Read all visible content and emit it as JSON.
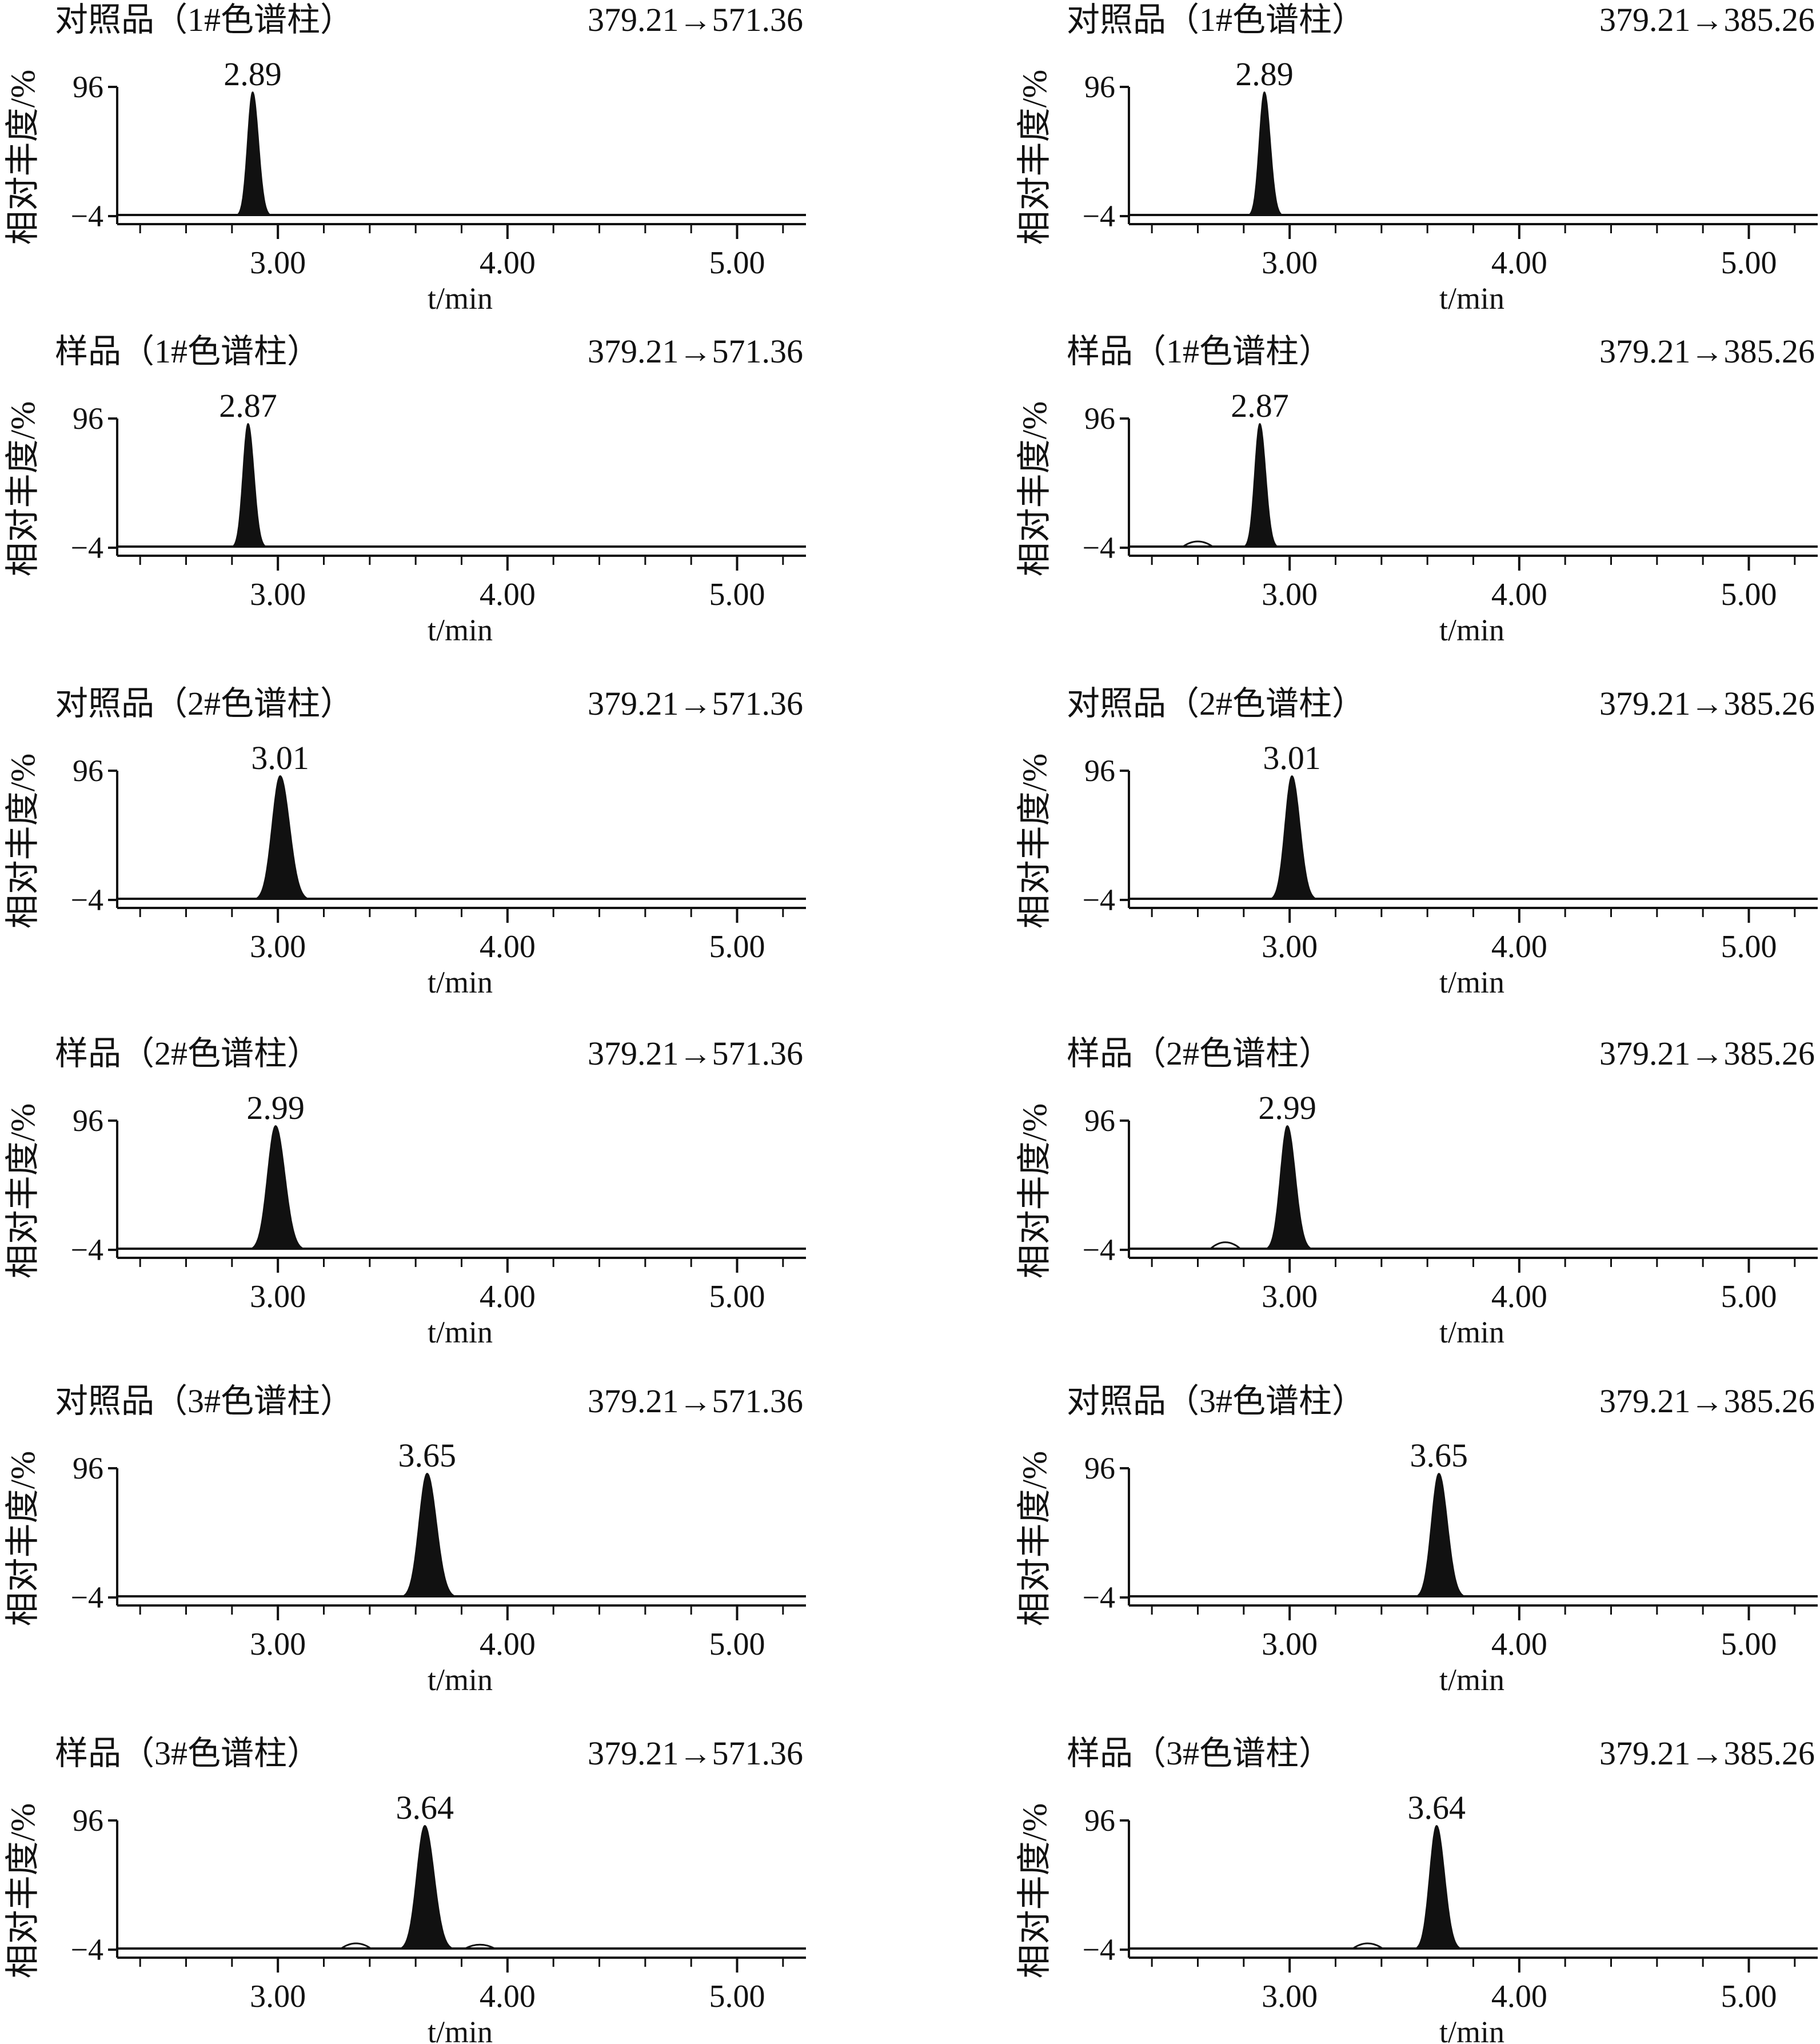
{
  "chart_data": [
    {
      "type": "line",
      "title": "对照品（1#色谱柱）",
      "transition": "379.21→571.36",
      "ylabel": "相对丰度/%",
      "xlabel": "t/min",
      "ylim": [
        -4,
        96
      ],
      "yticks": [
        "96",
        "−4"
      ],
      "xlim": [
        2.3,
        5.3
      ],
      "xticks": [
        {
          "value": 3.0,
          "label": "3.00"
        },
        {
          "value": 4.0,
          "label": "4.00"
        },
        {
          "value": 5.0,
          "label": "5.00"
        }
      ],
      "series": [
        {
          "peaks": [
            {
              "rt": 2.89,
              "label": "2.89",
              "height": 96,
              "sigma": 0.022,
              "tail": 0.06
            }
          ],
          "minor_peaks": []
        }
      ]
    },
    {
      "type": "line",
      "title": "对照品（1#色谱柱）",
      "transition": "379.21→385.26",
      "ylabel": "相对丰度/%",
      "xlabel": "t/min",
      "ylim": [
        -4,
        96
      ],
      "yticks": [
        "96",
        "−4"
      ],
      "xlim": [
        2.3,
        5.3
      ],
      "xticks": [
        {
          "value": 3.0,
          "label": "3.00"
        },
        {
          "value": 4.0,
          "label": "4.00"
        },
        {
          "value": 5.0,
          "label": "5.00"
        }
      ],
      "series": [
        {
          "peaks": [
            {
              "rt": 2.89,
              "label": "2.89",
              "height": 96,
              "sigma": 0.022,
              "tail": 0.06
            }
          ],
          "minor_peaks": []
        }
      ]
    },
    {
      "type": "line",
      "title": "样品（1#色谱柱）",
      "transition": "379.21→571.36",
      "ylabel": "相对丰度/%",
      "xlabel": "t/min",
      "ylim": [
        -4,
        96
      ],
      "yticks": [
        "96",
        "−4"
      ],
      "xlim": [
        2.3,
        5.3
      ],
      "xticks": [
        {
          "value": 3.0,
          "label": "3.00"
        },
        {
          "value": 4.0,
          "label": "4.00"
        },
        {
          "value": 5.0,
          "label": "5.00"
        }
      ],
      "series": [
        {
          "peaks": [
            {
              "rt": 2.87,
              "label": "2.87",
              "height": 96,
              "sigma": 0.022,
              "tail": 0.06
            }
          ],
          "minor_peaks": []
        }
      ]
    },
    {
      "type": "line",
      "title": "样品（1#色谱柱）",
      "transition": "379.21→385.26",
      "ylabel": "相对丰度/%",
      "xlabel": "t/min",
      "ylim": [
        -4,
        96
      ],
      "yticks": [
        "96",
        "−4"
      ],
      "xlim": [
        2.3,
        5.3
      ],
      "xticks": [
        {
          "value": 3.0,
          "label": "3.00"
        },
        {
          "value": 4.0,
          "label": "4.00"
        },
        {
          "value": 5.0,
          "label": "5.00"
        }
      ],
      "series": [
        {
          "peaks": [
            {
              "rt": 2.87,
              "label": "2.87",
              "height": 96,
              "sigma": 0.022,
              "tail": 0.06
            }
          ],
          "minor_peaks": [
            {
              "rt": 2.6,
              "height": 4
            }
          ]
        }
      ]
    },
    {
      "type": "line",
      "title": "对照品（2#色谱柱）",
      "transition": "379.21→571.36",
      "ylabel": "相对丰度/%",
      "xlabel": "t/min",
      "ylim": [
        -4,
        96
      ],
      "yticks": [
        "96",
        "−4"
      ],
      "xlim": [
        2.3,
        5.3
      ],
      "xticks": [
        {
          "value": 3.0,
          "label": "3.00"
        },
        {
          "value": 4.0,
          "label": "4.00"
        },
        {
          "value": 5.0,
          "label": "5.00"
        }
      ],
      "series": [
        {
          "peaks": [
            {
              "rt": 3.01,
              "label": "3.01",
              "height": 96,
              "sigma": 0.035,
              "tail": 0.08
            }
          ],
          "minor_peaks": []
        }
      ]
    },
    {
      "type": "line",
      "title": "对照品（2#色谱柱）",
      "transition": "379.21→385.26",
      "ylabel": "相对丰度/%",
      "xlabel": "t/min",
      "ylim": [
        -4,
        96
      ],
      "yticks": [
        "96",
        "−4"
      ],
      "xlim": [
        2.3,
        5.3
      ],
      "xticks": [
        {
          "value": 3.0,
          "label": "3.00"
        },
        {
          "value": 4.0,
          "label": "4.00"
        },
        {
          "value": 5.0,
          "label": "5.00"
        }
      ],
      "series": [
        {
          "peaks": [
            {
              "rt": 3.01,
              "label": "3.01",
              "height": 96,
              "sigma": 0.03,
              "tail": 0.07
            }
          ],
          "minor_peaks": []
        }
      ]
    },
    {
      "type": "line",
      "title": "样品（2#色谱柱）",
      "transition": "379.21→571.36",
      "ylabel": "相对丰度/%",
      "xlabel": "t/min",
      "ylim": [
        -4,
        96
      ],
      "yticks": [
        "96",
        "−4"
      ],
      "xlim": [
        2.3,
        5.3
      ],
      "xticks": [
        {
          "value": 3.0,
          "label": "3.00"
        },
        {
          "value": 4.0,
          "label": "4.00"
        },
        {
          "value": 5.0,
          "label": "5.00"
        }
      ],
      "series": [
        {
          "peaks": [
            {
              "rt": 2.99,
              "label": "2.99",
              "height": 96,
              "sigma": 0.035,
              "tail": 0.08
            }
          ],
          "minor_peaks": []
        }
      ]
    },
    {
      "type": "line",
      "title": "样品（2#色谱柱）",
      "transition": "379.21→385.26",
      "ylabel": "相对丰度/%",
      "xlabel": "t/min",
      "ylim": [
        -4,
        96
      ],
      "yticks": [
        "96",
        "−4"
      ],
      "xlim": [
        2.3,
        5.3
      ],
      "xticks": [
        {
          "value": 3.0,
          "label": "3.00"
        },
        {
          "value": 4.0,
          "label": "4.00"
        },
        {
          "value": 5.0,
          "label": "5.00"
        }
      ],
      "series": [
        {
          "peaks": [
            {
              "rt": 2.99,
              "label": "2.99",
              "height": 96,
              "sigma": 0.03,
              "tail": 0.07
            }
          ],
          "minor_peaks": [
            {
              "rt": 2.72,
              "height": 5
            }
          ]
        }
      ]
    },
    {
      "type": "line",
      "title": "对照品（3#色谱柱）",
      "transition": "379.21→571.36",
      "ylabel": "相对丰度/%",
      "xlabel": "t/min",
      "ylim": [
        -4,
        96
      ],
      "yticks": [
        "96",
        "−4"
      ],
      "xlim": [
        2.3,
        5.3
      ],
      "xticks": [
        {
          "value": 3.0,
          "label": "3.00"
        },
        {
          "value": 4.0,
          "label": "4.00"
        },
        {
          "value": 5.0,
          "label": "5.00"
        }
      ],
      "series": [
        {
          "peaks": [
            {
              "rt": 3.65,
              "label": "3.65",
              "height": 96,
              "sigma": 0.035,
              "tail": 0.08
            }
          ],
          "minor_peaks": []
        }
      ]
    },
    {
      "type": "line",
      "title": "对照品（3#色谱柱）",
      "transition": "379.21→385.26",
      "ylabel": "相对丰度/%",
      "xlabel": "t/min",
      "ylim": [
        -4,
        96
      ],
      "yticks": [
        "96",
        "−4"
      ],
      "xlim": [
        2.3,
        5.3
      ],
      "xticks": [
        {
          "value": 3.0,
          "label": "3.00"
        },
        {
          "value": 4.0,
          "label": "4.00"
        },
        {
          "value": 5.0,
          "label": "5.00"
        }
      ],
      "series": [
        {
          "peaks": [
            {
              "rt": 3.65,
              "label": "3.65",
              "height": 96,
              "sigma": 0.032,
              "tail": 0.08
            }
          ],
          "minor_peaks": []
        }
      ]
    },
    {
      "type": "line",
      "title": "样品（3#色谱柱）",
      "transition": "379.21→571.36",
      "ylabel": "相对丰度/%",
      "xlabel": "t/min",
      "ylim": [
        -4,
        96
      ],
      "yticks": [
        "96",
        "−4"
      ],
      "xlim": [
        2.3,
        5.3
      ],
      "xticks": [
        {
          "value": 3.0,
          "label": "3.00"
        },
        {
          "value": 4.0,
          "label": "4.00"
        },
        {
          "value": 5.0,
          "label": "5.00"
        }
      ],
      "series": [
        {
          "peaks": [
            {
              "rt": 3.64,
              "label": "3.64",
              "height": 96,
              "sigma": 0.035,
              "tail": 0.08
            }
          ],
          "minor_peaks": [
            {
              "rt": 3.34,
              "height": 4
            },
            {
              "rt": 3.88,
              "height": 3
            }
          ]
        }
      ]
    },
    {
      "type": "line",
      "title": "样品（3#色谱柱）",
      "transition": "379.21→385.26",
      "ylabel": "相对丰度/%",
      "xlabel": "t/min",
      "ylim": [
        -4,
        96
      ],
      "yticks": [
        "96",
        "−4"
      ],
      "xlim": [
        2.3,
        5.3
      ],
      "xticks": [
        {
          "value": 3.0,
          "label": "3.00"
        },
        {
          "value": 4.0,
          "label": "4.00"
        },
        {
          "value": 5.0,
          "label": "5.00"
        }
      ],
      "series": [
        {
          "peaks": [
            {
              "rt": 3.64,
              "label": "3.64",
              "height": 96,
              "sigma": 0.03,
              "tail": 0.07
            }
          ],
          "minor_peaks": [
            {
              "rt": 3.34,
              "height": 4
            }
          ]
        }
      ]
    }
  ],
  "colors": {
    "ink": "#111111",
    "background": "#ffffff"
  }
}
